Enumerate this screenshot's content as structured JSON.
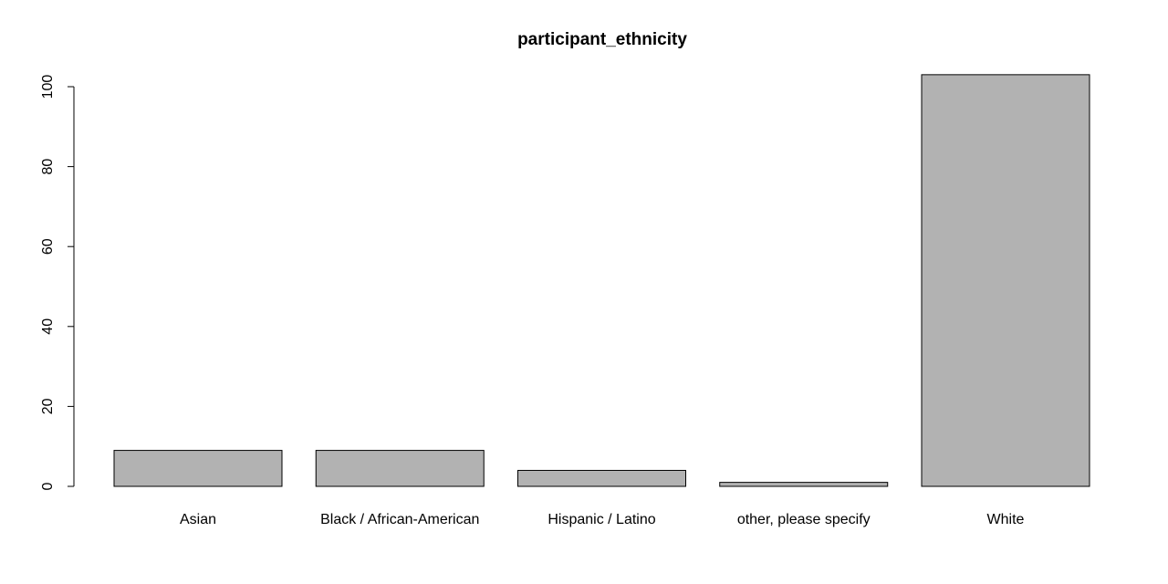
{
  "chart_data": {
    "type": "bar",
    "title": "participant_ethnicity",
    "xlabel": "",
    "ylabel": "",
    "categories": [
      "Asian",
      "Black / African-American",
      "Hispanic / Latino",
      "other, please specify",
      "White"
    ],
    "values": [
      9,
      9,
      4,
      1,
      103
    ],
    "yticks": [
      0,
      20,
      40,
      60,
      80,
      100
    ],
    "ylim": [
      0,
      103
    ],
    "grid": false,
    "bar_color": "#b2b2b2",
    "border_color": "#000000"
  }
}
